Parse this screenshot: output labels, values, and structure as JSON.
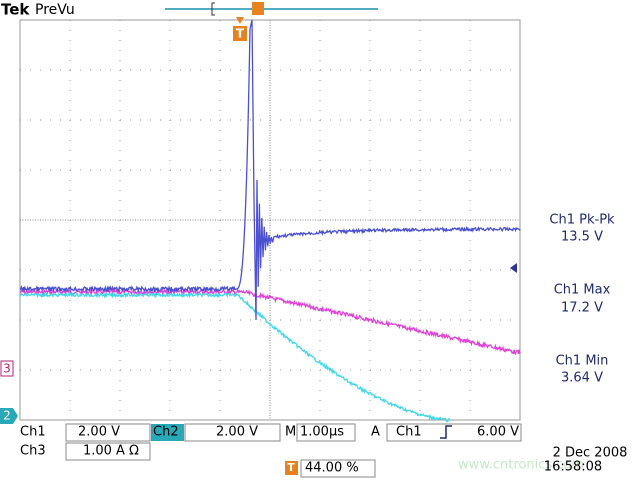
{
  "header": {
    "brand": "Tek",
    "mode": "PreVu"
  },
  "markers": {
    "trigger": "T",
    "ch3": "3",
    "ch2": "2"
  },
  "measurements": [
    {
      "label": "Ch1 Pk-Pk",
      "value": "13.5 V"
    },
    {
      "label": "Ch1 Max",
      "value": "17.2 V"
    },
    {
      "label": "Ch1 Min",
      "value": "3.64 V"
    }
  ],
  "status": {
    "ch1": "Ch1",
    "ch1_scale": "2.00 V",
    "ch2": "Ch2",
    "ch2_scale": "2.00 V",
    "time_label": "M",
    "time_scale": "1.00µs",
    "trigger_label": "A",
    "trigger_source": "Ch1",
    "trigger_level": "6.00 V",
    "ch3": "Ch3",
    "ch3_scale": "1.00 A Ω",
    "trigger_position": "44.00 %",
    "date": "2 Dec 2008",
    "time": "16:58:08"
  },
  "watermark": "www.cntronics.com"
}
